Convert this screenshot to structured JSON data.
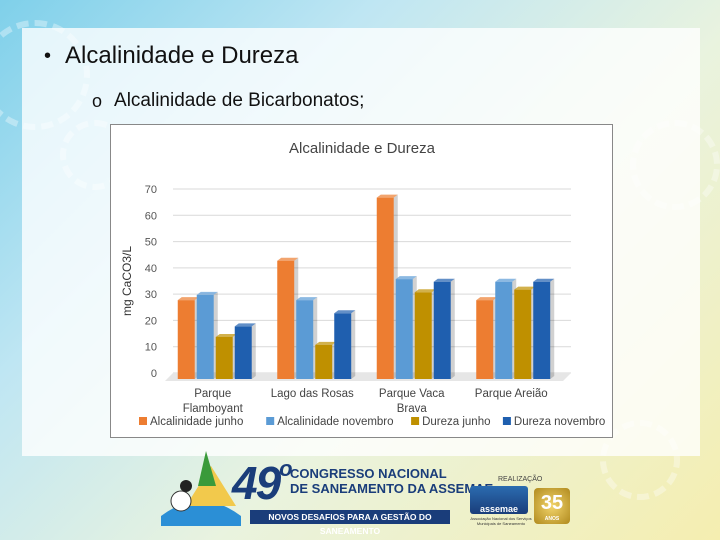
{
  "slide": {
    "bullet_title": "Alcalinidade e Dureza",
    "sub_bullet": "Alcalinidade de Bicarbonatos;"
  },
  "chart_data": {
    "type": "bar",
    "title": "Alcalinidade e Dureza",
    "ylabel": "mg CaCO3/L",
    "xlabel": "",
    "ylim": [
      0,
      70
    ],
    "yticks": [
      0,
      10,
      20,
      30,
      40,
      50,
      60,
      70
    ],
    "categories": [
      "Parque Flamboyant",
      "Lago das Rosas",
      "Parque Vaca Brava",
      "Parque Areião"
    ],
    "series": [
      {
        "name": "Alcalinidade junho",
        "color": "#ED7D31",
        "values": [
          30,
          45,
          69,
          30
        ]
      },
      {
        "name": "Alcalinidade novembro",
        "color": "#5B9BD5",
        "values": [
          32,
          30,
          38,
          37
        ]
      },
      {
        "name": "Dureza junho",
        "color": "#BF9000",
        "values": [
          16,
          13,
          33,
          34
        ]
      },
      {
        "name": "Dureza novembro",
        "color": "#1F5FAF",
        "values": [
          20,
          25,
          37,
          37
        ]
      }
    ],
    "grid": true,
    "legend": "bottom"
  },
  "footer": {
    "edition_number": "49",
    "edition_suffix": "o",
    "congress_line1": "CONGRESSO NACIONAL",
    "congress_line2": "DE SANEAMENTO DA ASSEMAE",
    "slogan": "NOVOS DESAFIOS PARA A GESTÃO DO SANEAMENTO",
    "realizacao": "REALIZAÇÃO",
    "assemae": "assemae",
    "assemae_sub": "Associação Nacional dos Serviços Municipais de Saneamento",
    "anniversary": "35",
    "anniversary_sub": "ANOS"
  }
}
